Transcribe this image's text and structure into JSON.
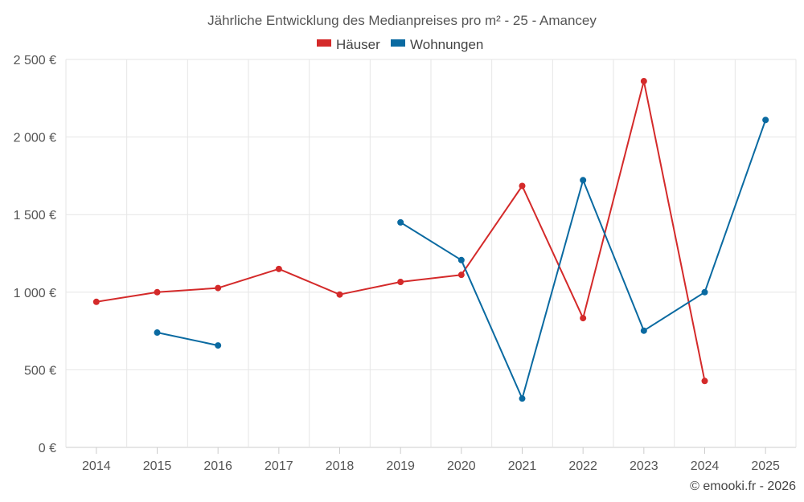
{
  "chart_data": {
    "type": "line",
    "title": "Jährliche Entwicklung des Medianpreises pro m² - 25 - Amancey",
    "categories": [
      "2014",
      "2015",
      "2016",
      "2017",
      "2018",
      "2019",
      "2020",
      "2021",
      "2022",
      "2023",
      "2024",
      "2025"
    ],
    "y_ticks": [
      "0 €",
      "500 €",
      "1 000 €",
      "1 500 €",
      "2 000 €",
      "2 500 €"
    ],
    "ylim": [
      0,
      2500
    ],
    "grid": true,
    "legend_position": "top-center",
    "series": [
      {
        "name": "Häuser",
        "color": "#d42a2a",
        "values": [
          938,
          1000,
          1027,
          1150,
          985,
          1066,
          1112,
          1685,
          833,
          2360,
          428,
          null
        ]
      },
      {
        "name": "Wohnungen",
        "color": "#0a6aa1",
        "values": [
          null,
          740,
          657,
          null,
          null,
          1450,
          1207,
          315,
          1722,
          752,
          1000,
          2110
        ]
      }
    ],
    "credit": "© emooki.fr - 2026"
  }
}
